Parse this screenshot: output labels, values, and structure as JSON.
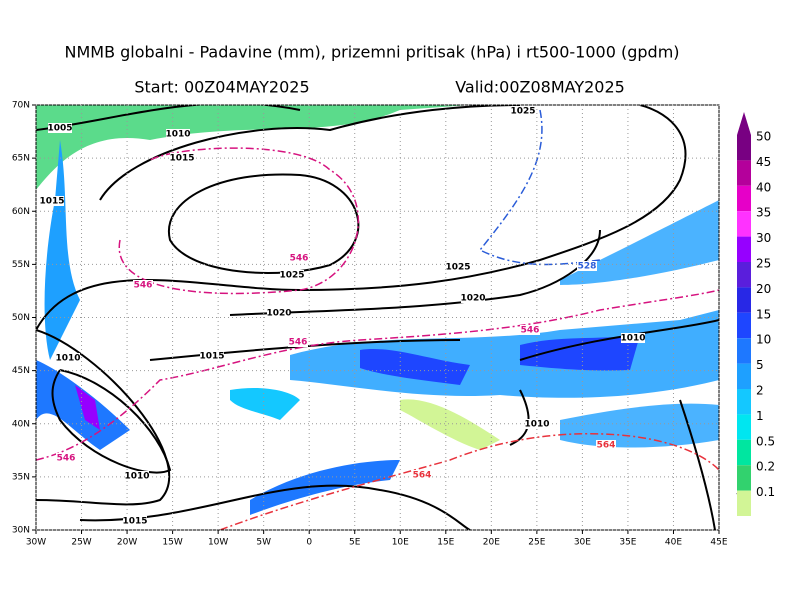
{
  "header": {
    "title": "NMMB globalni - Padavine (mm), prizemni pritisak (hPa) i rt500-1000 (gpdm)",
    "start": "Start: 00Z04MAY2025",
    "valid": "Valid:00Z08MAY2025"
  },
  "map": {
    "lon_range": [
      -30,
      45
    ],
    "lat_range": [
      30,
      70
    ],
    "lon_ticks": [
      {
        "value": -30,
        "label": "30W"
      },
      {
        "value": -25,
        "label": "25W"
      },
      {
        "value": -20,
        "label": "20W"
      },
      {
        "value": -15,
        "label": "15W"
      },
      {
        "value": -10,
        "label": "10W"
      },
      {
        "value": -5,
        "label": "5W"
      },
      0,
      {
        "value": 5,
        "label": "5E"
      },
      {
        "value": 10,
        "label": "10E"
      },
      {
        "value": 15,
        "label": "15E"
      },
      {
        "value": 20,
        "label": "20E"
      },
      {
        "value": 25,
        "label": "25E"
      },
      {
        "value": 30,
        "label": "30E"
      },
      {
        "value": 35,
        "label": "35E"
      },
      {
        "value": 40,
        "label": "40E"
      },
      {
        "value": 45,
        "label": "45E"
      }
    ],
    "lat_ticks": [
      {
        "value": 30,
        "label": "30N"
      },
      {
        "value": 35,
        "label": "35N"
      },
      {
        "value": 40,
        "label": "40N"
      },
      {
        "value": 45,
        "label": "45N"
      },
      {
        "value": 50,
        "label": "50N"
      },
      {
        "value": 55,
        "label": "55N"
      },
      {
        "value": 60,
        "label": "60N"
      },
      {
        "value": 65,
        "label": "65N"
      },
      {
        "value": 70,
        "label": "70N"
      }
    ],
    "isobar_labels": [
      1005,
      1010,
      1015,
      1015,
      1025,
      1025,
      1020,
      1020,
      1015,
      1010,
      1010,
      1010,
      1010,
      1015,
      1025
    ],
    "thickness_labels": [
      {
        "value": 546,
        "color": "#d6137f"
      },
      {
        "value": 546,
        "color": "#d6137f"
      },
      {
        "value": 546,
        "color": "#d6137f"
      },
      {
        "value": 546,
        "color": "#d6137f"
      },
      {
        "value": 546,
        "color": "#d6137f"
      },
      {
        "value": 528,
        "color": "#2a5cd8"
      },
      {
        "value": 564,
        "color": "#e8323c"
      },
      {
        "value": 564,
        "color": "#e8323c"
      }
    ]
  },
  "colorbar": {
    "levels": [
      50,
      45,
      40,
      35,
      30,
      25,
      20,
      15,
      10,
      5,
      2,
      1,
      0.5,
      0.2,
      0.1
    ],
    "colors": [
      "#780082",
      "#b4009b",
      "#e600c8",
      "#ff32ff",
      "#9600ff",
      "#5a1edc",
      "#2828e6",
      "#1e46ff",
      "#1e78ff",
      "#1ea0ff",
      "#14c8ff",
      "#00e6f0",
      "#00e6a0",
      "#32d26e",
      "#d2f596"
    ]
  }
}
